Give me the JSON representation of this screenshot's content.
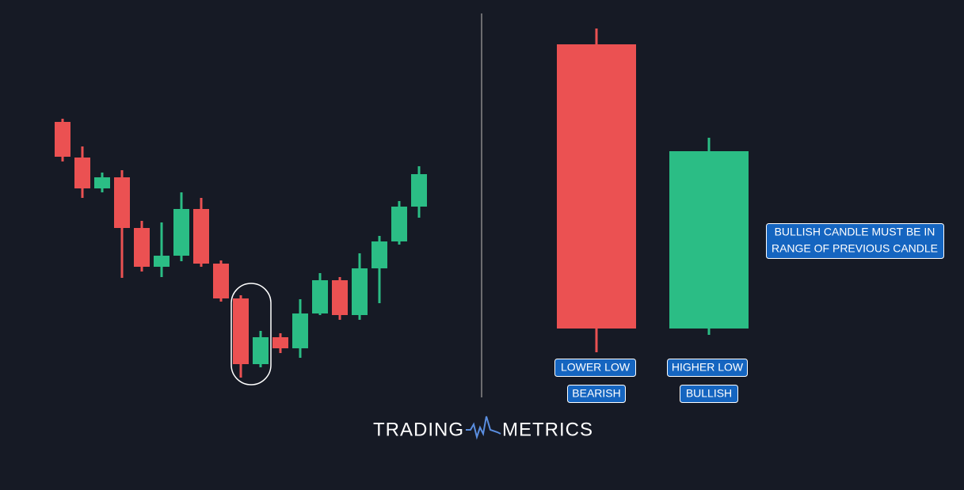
{
  "labels": {
    "red_candle": {
      "low": "LOWER LOW",
      "kind": "BEARISH"
    },
    "green_candle": {
      "low": "HIGHER LOW",
      "kind": "BULLISH"
    }
  },
  "callout": {
    "lines": [
      "BULLISH CANDLE MUST BE IN",
      "RANGE OF PREVIOUS CANDLE"
    ]
  },
  "logo": {
    "left": "TRADING",
    "right": "METRICS"
  }
}
